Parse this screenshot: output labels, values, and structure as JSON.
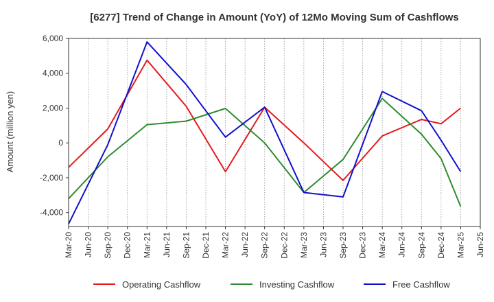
{
  "chart_data": {
    "type": "line",
    "title": "[6277]  Trend of Change in Amount (YoY) of 12Mo Moving Sum of Cashflows",
    "ylabel": "Amount (million yen)",
    "xlabel": "",
    "ylim": [
      -4800,
      6000
    ],
    "yticks": [
      -4000,
      -2000,
      0,
      2000,
      4000,
      6000
    ],
    "ytick_labels": [
      "-4,000",
      "-2,000",
      "0",
      "2,000",
      "4,000",
      "6,000"
    ],
    "categories": [
      "Mar-20",
      "Jun-20",
      "Sep-20",
      "Dec-20",
      "Mar-21",
      "Jun-21",
      "Sep-21",
      "Dec-21",
      "Mar-22",
      "Jun-22",
      "Sep-22",
      "Dec-22",
      "Mar-23",
      "Jun-23",
      "Sep-23",
      "Dec-23",
      "Mar-24",
      "Jun-24",
      "Sep-24",
      "Dec-24",
      "Mar-25",
      "Jun-25"
    ],
    "grid": true,
    "legend_position": "bottom",
    "series": [
      {
        "name": "Operating Cashflow",
        "color": "#e41a1c",
        "values": [
          -1400,
          null,
          800,
          null,
          4750,
          null,
          2100,
          null,
          -1650,
          null,
          2050,
          null,
          0,
          null,
          -2150,
          null,
          400,
          null,
          1350,
          1100,
          2000,
          null
        ]
      },
      {
        "name": "Investing Cashflow",
        "color": "#2e8b2e",
        "values": [
          -3200,
          null,
          -800,
          null,
          1050,
          null,
          1250,
          null,
          1980,
          null,
          0,
          null,
          -2850,
          null,
          -950,
          null,
          2550,
          null,
          500,
          -900,
          -3650,
          null
        ]
      },
      {
        "name": "Free Cashflow",
        "color": "#1010cc",
        "values": [
          -4650,
          null,
          -100,
          null,
          5800,
          null,
          3350,
          null,
          330,
          null,
          2050,
          null,
          -2850,
          null,
          -3100,
          null,
          2950,
          null,
          1850,
          150,
          -1650,
          null
        ]
      }
    ]
  }
}
